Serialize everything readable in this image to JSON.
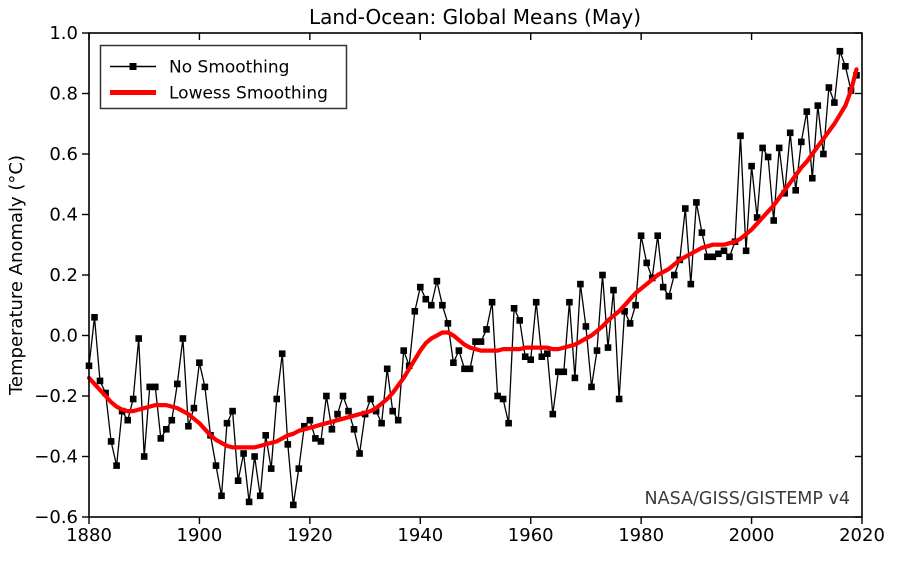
{
  "title": "Land-Ocean: Global Means (May)",
  "ylabel": "Temperature Anomaly (°C)",
  "watermark": "NASA/GISS/GISTEMP v4",
  "colors": {
    "no_smoothing_line": "#000000",
    "no_smoothing_marker": "#000000",
    "lowess_line": "#ff0000",
    "axis": "#000000",
    "legend_border": "#333333",
    "watermark_text": "#3b3b3b",
    "background": "#ffffff"
  },
  "legend": {
    "items": [
      {
        "label": "No Smoothing"
      },
      {
        "label": "Lowess Smoothing"
      }
    ]
  },
  "axes": {
    "xlim": [
      1880,
      2020
    ],
    "ylim": [
      -0.6,
      1.0
    ],
    "x_tick_values": [
      1880,
      1900,
      1920,
      1940,
      1960,
      1980,
      2000,
      2020
    ],
    "x_tick_labels": [
      "1880",
      "1900",
      "1920",
      "1940",
      "1960",
      "1980",
      "2000",
      "2020"
    ],
    "y_tick_values": [
      1.0,
      0.8,
      0.6,
      0.4,
      0.2,
      0.0,
      -0.2,
      -0.4,
      -0.6
    ],
    "y_tick_labels": [
      "1.0",
      "0.8",
      "0.6",
      "0.4",
      "0.2",
      "0.0",
      "−0.2",
      "−0.4",
      "−0.6"
    ],
    "grid": false,
    "legend_position": "upper left"
  },
  "chart_data": {
    "type": "line",
    "title": "Land-Ocean: Global Means (May)",
    "xlabel": "",
    "ylabel": "Temperature Anomaly (°C)",
    "xlim": [
      1880,
      2020
    ],
    "ylim": [
      -0.6,
      1.0
    ],
    "start_year": 1880,
    "end_year": 2019,
    "series": [
      {
        "name": "No Smoothing",
        "style": "line+square-markers",
        "x": [
          1880,
          1881,
          1882,
          1883,
          1884,
          1885,
          1886,
          1887,
          1888,
          1889,
          1890,
          1891,
          1892,
          1893,
          1894,
          1895,
          1896,
          1897,
          1898,
          1899,
          1900,
          1901,
          1902,
          1903,
          1904,
          1905,
          1906,
          1907,
          1908,
          1909,
          1910,
          1911,
          1912,
          1913,
          1914,
          1915,
          1916,
          1917,
          1918,
          1919,
          1920,
          1921,
          1922,
          1923,
          1924,
          1925,
          1926,
          1927,
          1928,
          1929,
          1930,
          1931,
          1932,
          1933,
          1934,
          1935,
          1936,
          1937,
          1938,
          1939,
          1940,
          1941,
          1942,
          1943,
          1944,
          1945,
          1946,
          1947,
          1948,
          1949,
          1950,
          1951,
          1952,
          1953,
          1954,
          1955,
          1956,
          1957,
          1958,
          1959,
          1960,
          1961,
          1962,
          1963,
          1964,
          1965,
          1966,
          1967,
          1968,
          1969,
          1970,
          1971,
          1972,
          1973,
          1974,
          1975,
          1976,
          1977,
          1978,
          1979,
          1980,
          1981,
          1982,
          1983,
          1984,
          1985,
          1986,
          1987,
          1988,
          1989,
          1990,
          1991,
          1992,
          1993,
          1994,
          1995,
          1996,
          1997,
          1998,
          1999,
          2000,
          2001,
          2002,
          2003,
          2004,
          2005,
          2006,
          2007,
          2008,
          2009,
          2010,
          2011,
          2012,
          2013,
          2014,
          2015,
          2016,
          2017,
          2018,
          2019
        ],
        "y": [
          -0.1,
          0.06,
          -0.15,
          -0.19,
          -0.35,
          -0.43,
          -0.25,
          -0.28,
          -0.21,
          -0.01,
          -0.4,
          -0.17,
          -0.17,
          -0.34,
          -0.31,
          -0.28,
          -0.16,
          -0.01,
          -0.3,
          -0.24,
          -0.09,
          -0.17,
          -0.33,
          -0.43,
          -0.53,
          -0.29,
          -0.25,
          -0.48,
          -0.39,
          -0.55,
          -0.4,
          -0.53,
          -0.33,
          -0.44,
          -0.21,
          -0.06,
          -0.36,
          -0.56,
          -0.44,
          -0.3,
          -0.28,
          -0.34,
          -0.35,
          -0.2,
          -0.31,
          -0.26,
          -0.2,
          -0.25,
          -0.31,
          -0.39,
          -0.26,
          -0.21,
          -0.25,
          -0.29,
          -0.11,
          -0.25,
          -0.28,
          -0.05,
          -0.1,
          0.08,
          0.16,
          0.12,
          0.1,
          0.18,
          0.1,
          0.04,
          -0.09,
          -0.05,
          -0.11,
          -0.11,
          -0.02,
          -0.02,
          0.02,
          0.11,
          -0.2,
          -0.21,
          -0.29,
          0.09,
          0.05,
          -0.07,
          -0.08,
          0.11,
          -0.07,
          -0.06,
          -0.26,
          -0.12,
          -0.12,
          0.11,
          -0.14,
          0.17,
          0.03,
          -0.17,
          -0.05,
          0.2,
          -0.04,
          0.15,
          -0.21,
          0.08,
          0.04,
          0.1,
          0.33,
          0.24,
          0.19,
          0.33,
          0.16,
          0.13,
          0.2,
          0.25,
          0.42,
          0.17,
          0.44,
          0.34,
          0.26,
          0.26,
          0.27,
          0.28,
          0.26,
          0.31,
          0.66,
          0.28,
          0.56,
          0.39,
          0.62,
          0.59,
          0.38,
          0.62,
          0.47,
          0.67,
          0.48,
          0.64,
          0.74,
          0.52,
          0.76,
          0.6,
          0.82,
          0.77,
          0.94,
          0.89,
          0.81,
          0.86
        ]
      },
      {
        "name": "Lowess Smoothing",
        "style": "thick-line",
        "x": [
          1880,
          1881,
          1882,
          1883,
          1884,
          1885,
          1886,
          1887,
          1888,
          1889,
          1890,
          1891,
          1892,
          1893,
          1894,
          1895,
          1896,
          1897,
          1898,
          1899,
          1900,
          1901,
          1902,
          1903,
          1904,
          1905,
          1906,
          1907,
          1908,
          1909,
          1910,
          1911,
          1912,
          1913,
          1914,
          1915,
          1916,
          1917,
          1918,
          1919,
          1920,
          1921,
          1922,
          1923,
          1924,
          1925,
          1926,
          1927,
          1928,
          1929,
          1930,
          1931,
          1932,
          1933,
          1934,
          1935,
          1936,
          1937,
          1938,
          1939,
          1940,
          1941,
          1942,
          1943,
          1944,
          1945,
          1946,
          1947,
          1948,
          1949,
          1950,
          1951,
          1952,
          1953,
          1954,
          1955,
          1956,
          1957,
          1958,
          1959,
          1960,
          1961,
          1962,
          1963,
          1964,
          1965,
          1966,
          1967,
          1968,
          1969,
          1970,
          1971,
          1972,
          1973,
          1974,
          1975,
          1976,
          1977,
          1978,
          1979,
          1980,
          1981,
          1982,
          1983,
          1984,
          1985,
          1986,
          1987,
          1988,
          1989,
          1990,
          1991,
          1992,
          1993,
          1994,
          1995,
          1996,
          1997,
          1998,
          1999,
          2000,
          2001,
          2002,
          2003,
          2004,
          2005,
          2006,
          2007,
          2008,
          2009,
          2010,
          2011,
          2012,
          2013,
          2014,
          2015,
          2016,
          2017,
          2018,
          2019
        ],
        "y": [
          -0.14,
          -0.16,
          -0.18,
          -0.2,
          -0.22,
          -0.235,
          -0.245,
          -0.25,
          -0.25,
          -0.245,
          -0.24,
          -0.235,
          -0.23,
          -0.23,
          -0.23,
          -0.235,
          -0.24,
          -0.25,
          -0.26,
          -0.275,
          -0.29,
          -0.31,
          -0.33,
          -0.345,
          -0.355,
          -0.365,
          -0.37,
          -0.37,
          -0.37,
          -0.37,
          -0.37,
          -0.365,
          -0.36,
          -0.355,
          -0.35,
          -0.34,
          -0.33,
          -0.325,
          -0.315,
          -0.31,
          -0.305,
          -0.3,
          -0.295,
          -0.29,
          -0.285,
          -0.28,
          -0.275,
          -0.27,
          -0.265,
          -0.26,
          -0.255,
          -0.25,
          -0.24,
          -0.225,
          -0.21,
          -0.19,
          -0.165,
          -0.14,
          -0.11,
          -0.08,
          -0.05,
          -0.025,
          -0.01,
          0.0,
          0.01,
          0.01,
          0.0,
          -0.015,
          -0.03,
          -0.04,
          -0.045,
          -0.05,
          -0.05,
          -0.05,
          -0.05,
          -0.045,
          -0.045,
          -0.045,
          -0.045,
          -0.04,
          -0.04,
          -0.04,
          -0.04,
          -0.04,
          -0.045,
          -0.045,
          -0.04,
          -0.035,
          -0.03,
          -0.02,
          -0.01,
          0.0,
          0.015,
          0.03,
          0.05,
          0.065,
          0.08,
          0.1,
          0.12,
          0.14,
          0.155,
          0.17,
          0.185,
          0.2,
          0.21,
          0.22,
          0.235,
          0.25,
          0.26,
          0.27,
          0.28,
          0.29,
          0.295,
          0.3,
          0.3,
          0.3,
          0.305,
          0.31,
          0.32,
          0.335,
          0.35,
          0.37,
          0.39,
          0.41,
          0.43,
          0.455,
          0.48,
          0.505,
          0.53,
          0.555,
          0.575,
          0.6,
          0.625,
          0.65,
          0.675,
          0.7,
          0.73,
          0.76,
          0.81,
          0.88
        ]
      }
    ]
  }
}
